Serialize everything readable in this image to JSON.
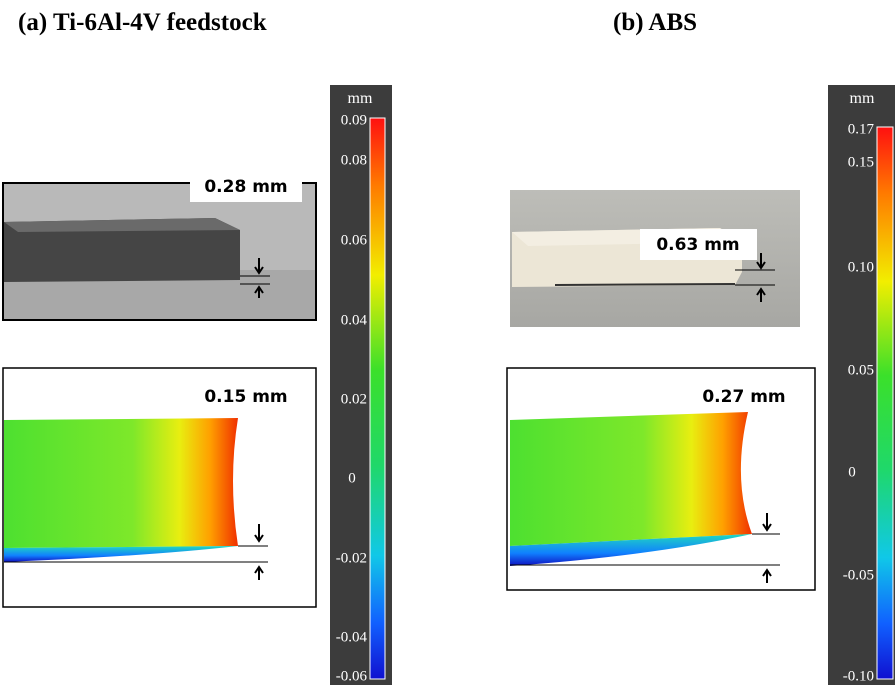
{
  "panels": [
    {
      "title": "(a) Ti-6Al-4V feedstock",
      "photo_label": "0.28 mm",
      "simulation_label": "0.15 mm",
      "colorbar": {
        "unit": "mm",
        "ticks": [
          "0.09",
          "0.08",
          "0.06",
          "0.04",
          "0.02",
          "0",
          "-0.02",
          "-0.04",
          "-0.06"
        ]
      }
    },
    {
      "title": "(b) ABS",
      "photo_label": "0.63 mm",
      "simulation_label": "0.27 mm",
      "colorbar": {
        "unit": "mm",
        "ticks": [
          "0.17",
          "0.15",
          "0.10",
          "0.05",
          "0",
          "-0.05",
          "-0.10"
        ]
      }
    }
  ]
}
